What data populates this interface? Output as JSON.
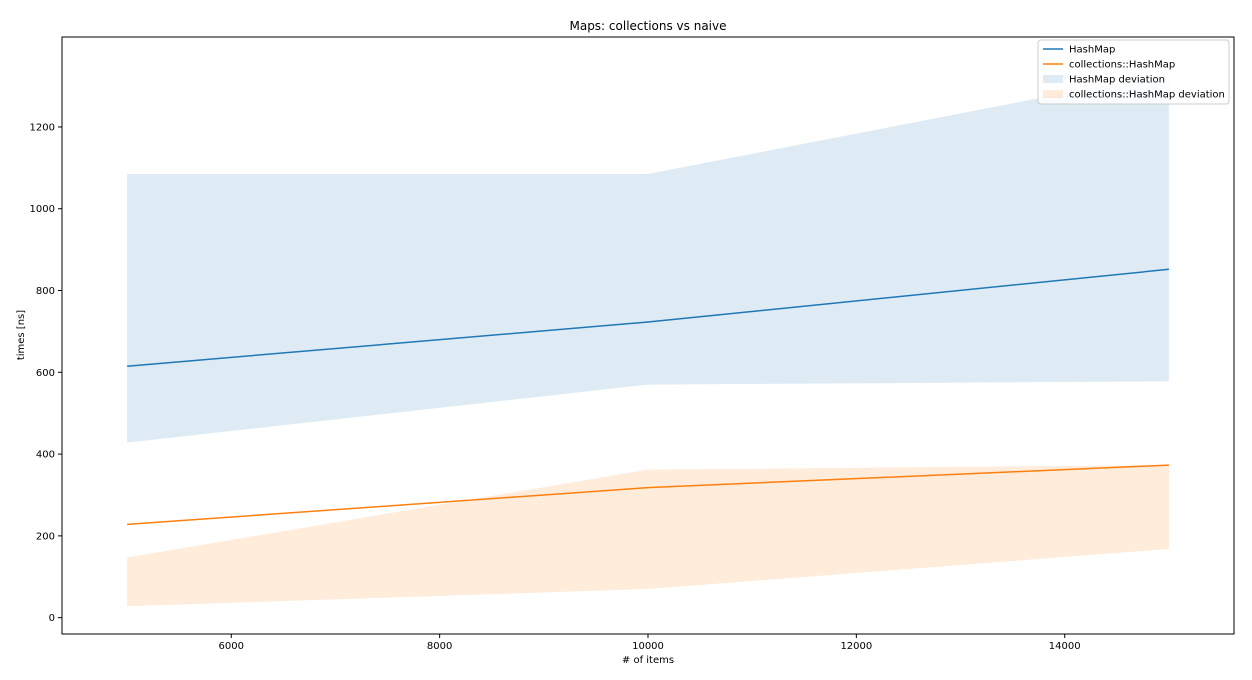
{
  "chart_data": {
    "type": "line",
    "title": "Maps: collections vs naive",
    "xlabel": "# of items",
    "ylabel": "times [ns]",
    "x": [
      5000,
      10000,
      15000
    ],
    "xlim": [
      4375,
      15625
    ],
    "ylim": [
      -40,
      1420
    ],
    "xticks": [
      6000,
      8000,
      10000,
      12000,
      14000
    ],
    "yticks": [
      0,
      200,
      400,
      600,
      800,
      1000,
      1200
    ],
    "grid": false,
    "legend_position": "top-right",
    "series": [
      {
        "name": "HashMap",
        "color": "#1f77b4",
        "values": [
          615,
          723,
          852
        ],
        "deviation_name": "HashMap deviation",
        "lower": [
          428,
          570,
          578
        ],
        "upper": [
          1085,
          1085,
          1332
        ]
      },
      {
        "name": "collections::HashMap",
        "color": "#ff7f0e",
        "values": [
          228,
          318,
          373
        ],
        "deviation_name": "collections::HashMap deviation",
        "lower": [
          28,
          70,
          168
        ],
        "upper": [
          147,
          362,
          373
        ]
      }
    ]
  }
}
